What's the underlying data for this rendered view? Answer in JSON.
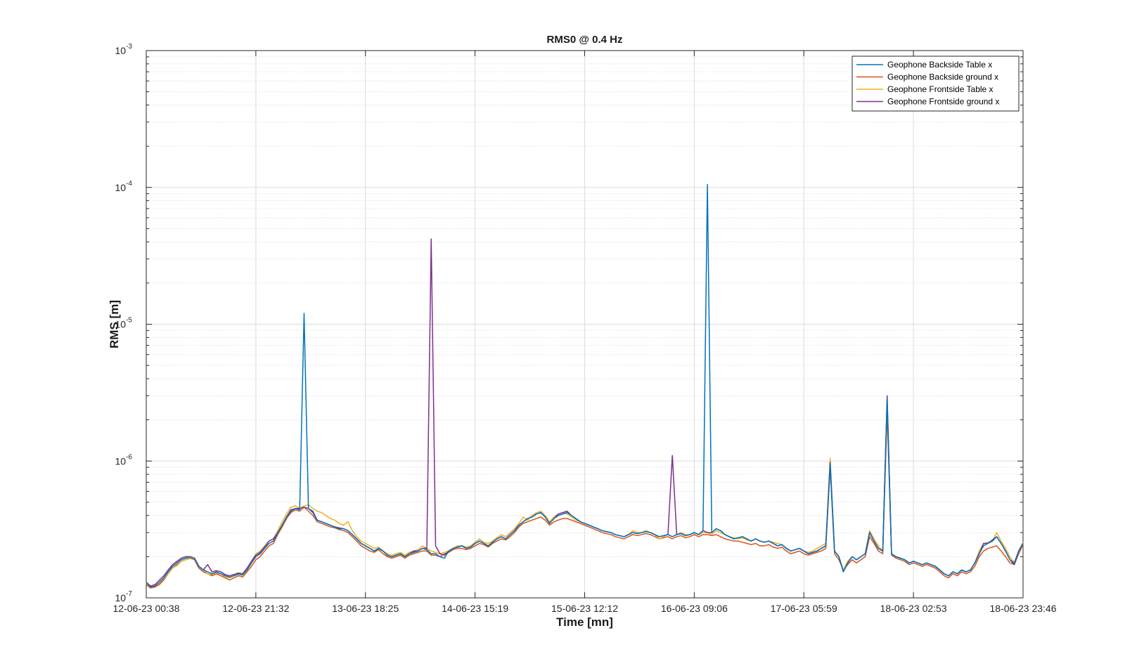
{
  "chart_data": {
    "type": "line",
    "title": "RMS0 @ 0.4 Hz",
    "xlabel": "Time [mn]",
    "ylabel": "RMS [m]",
    "yscale": "log",
    "ylim": [
      1e-07,
      0.001
    ],
    "yticks": [
      {
        "base": "10",
        "exp": "-7",
        "value": 1e-07
      },
      {
        "base": "10",
        "exp": "-6",
        "value": 1e-06
      },
      {
        "base": "10",
        "exp": "-5",
        "value": 1e-05
      },
      {
        "base": "10",
        "exp": "-4",
        "value": 0.0001
      },
      {
        "base": "10",
        "exp": "-3",
        "value": 0.001
      }
    ],
    "xticks": [
      "12-06-23 00:38",
      "12-06-23 21:32",
      "13-06-23 18:25",
      "14-06-23 15:19",
      "15-06-23 12:12",
      "16-06-23 09:06",
      "17-06-23 05:59",
      "18-06-23 02:53",
      "18-06-23 23:46"
    ],
    "xlim": [
      "12-06-23 00:38",
      "18-06-23 23:46"
    ],
    "grid": true,
    "legend_position": "top-right",
    "sample_interval_hours": 1,
    "series": [
      {
        "name": "Geophone Backside Table x",
        "color": "#0072BD",
        "values": [
          1.3e-07,
          1.2e-07,
          1.22e-07,
          1.3e-07,
          1.4e-07,
          1.55e-07,
          1.7e-07,
          1.8e-07,
          1.9e-07,
          1.95e-07,
          2e-07,
          1.95e-07,
          1.7e-07,
          1.6e-07,
          1.55e-07,
          1.5e-07,
          1.55e-07,
          1.5e-07,
          1.45e-07,
          1.42e-07,
          1.45e-07,
          1.5e-07,
          1.48e-07,
          1.6e-07,
          1.8e-07,
          2e-07,
          2.1e-07,
          2.3e-07,
          2.5e-07,
          2.6e-07,
          3e-07,
          3.4e-07,
          3.9e-07,
          4.3e-07,
          4.5e-07,
          4.4e-07,
          1.2e-05,
          4.5e-07,
          4.3e-07,
          3.7e-07,
          3.6e-07,
          3.5e-07,
          3.4e-07,
          3.3e-07,
          3.2e-07,
          3.2e-07,
          3.1e-07,
          2.9e-07,
          2.7e-07,
          2.5e-07,
          2.4e-07,
          2.3e-07,
          2.2e-07,
          2.3e-07,
          2.2e-07,
          2.05e-07,
          2e-07,
          2.05e-07,
          2.1e-07,
          2e-07,
          2.1e-07,
          2.15e-07,
          2.2e-07,
          2.3e-07,
          2.25e-07,
          2.1e-07,
          2.1e-07,
          2e-07,
          1.95e-07,
          2.2e-07,
          2.3e-07,
          2.35e-07,
          2.4e-07,
          2.3e-07,
          2.35e-07,
          2.5e-07,
          2.6e-07,
          2.5e-07,
          2.4e-07,
          2.55e-07,
          2.7e-07,
          2.8e-07,
          2.7e-07,
          2.9e-07,
          3.1e-07,
          3.4e-07,
          3.6e-07,
          3.8e-07,
          3.9e-07,
          4.1e-07,
          4.2e-07,
          3.9e-07,
          3.5e-07,
          3.8e-07,
          4e-07,
          4.1e-07,
          4.2e-07,
          4e-07,
          3.8e-07,
          3.6e-07,
          3.5e-07,
          3.4e-07,
          3.3e-07,
          3.2e-07,
          3.1e-07,
          3.05e-07,
          3e-07,
          2.9e-07,
          2.85e-07,
          2.8e-07,
          2.9e-07,
          3e-07,
          2.95e-07,
          3e-07,
          3.05e-07,
          3e-07,
          2.9e-07,
          2.8e-07,
          2.85e-07,
          2.9e-07,
          2.8e-07,
          2.9e-07,
          2.95e-07,
          2.85e-07,
          2.9e-07,
          3e-07,
          2.9e-07,
          3.1e-07,
          0.000105,
          3e-07,
          3.2e-07,
          3.1e-07,
          2.9e-07,
          2.8e-07,
          2.7e-07,
          2.75e-07,
          2.8e-07,
          2.7e-07,
          2.6e-07,
          2.7e-07,
          2.6e-07,
          2.55e-07,
          2.6e-07,
          2.5e-07,
          2.4e-07,
          2.45e-07,
          2.3e-07,
          2.2e-07,
          2.25e-07,
          2.3e-07,
          2.2e-07,
          2.1e-07,
          2.15e-07,
          2.2e-07,
          2.3e-07,
          2.4e-07,
          9.6e-07,
          2.2e-07,
          2e-07,
          1.55e-07,
          1.8e-07,
          2e-07,
          1.9e-07,
          2e-07,
          2.1e-07,
          3e-07,
          2.6e-07,
          2.3e-07,
          2.2e-07,
          2.8e-06,
          2.1e-07,
          2e-07,
          1.95e-07,
          1.9e-07,
          1.8e-07,
          1.85e-07,
          1.8e-07,
          1.75e-07,
          1.8e-07,
          1.75e-07,
          1.7e-07,
          1.6e-07,
          1.5e-07,
          1.45e-07,
          1.55e-07,
          1.5e-07,
          1.6e-07,
          1.55e-07,
          1.6e-07,
          1.8e-07,
          2.1e-07,
          2.4e-07,
          2.5e-07,
          2.6e-07,
          2.8e-07,
          2.5e-07,
          2.2e-07,
          1.9e-07,
          1.8e-07,
          2.2e-07,
          2.5e-07
        ]
      },
      {
        "name": "Geophone Backside ground x",
        "color": "#D95319",
        "values": [
          1.25e-07,
          1.18e-07,
          1.2e-07,
          1.25e-07,
          1.35e-07,
          1.5e-07,
          1.65e-07,
          1.75e-07,
          1.85e-07,
          1.9e-07,
          1.95e-07,
          1.9e-07,
          1.65e-07,
          1.55e-07,
          1.5e-07,
          1.45e-07,
          1.5e-07,
          1.45e-07,
          1.4e-07,
          1.35e-07,
          1.4e-07,
          1.45e-07,
          1.42e-07,
          1.55e-07,
          1.7e-07,
          1.9e-07,
          2e-07,
          2.2e-07,
          2.4e-07,
          2.5e-07,
          2.9e-07,
          3.3e-07,
          3.8e-07,
          4.2e-07,
          4.4e-07,
          4.3e-07,
          4.6e-07,
          4.3e-07,
          4e-07,
          3.6e-07,
          3.5e-07,
          3.4e-07,
          3.3e-07,
          3.25e-07,
          3.15e-07,
          3.1e-07,
          3e-07,
          2.8e-07,
          2.6e-07,
          2.4e-07,
          2.3e-07,
          2.2e-07,
          2.15e-07,
          2.25e-07,
          2.1e-07,
          2e-07,
          1.95e-07,
          2e-07,
          2.05e-07,
          1.95e-07,
          2.05e-07,
          2.1e-07,
          2.15e-07,
          2.2e-07,
          2.2e-07,
          2.05e-07,
          2.05e-07,
          2e-07,
          2.1e-07,
          2.15e-07,
          2.25e-07,
          2.3e-07,
          2.3e-07,
          2.25e-07,
          2.3e-07,
          2.4e-07,
          2.5e-07,
          2.45e-07,
          2.35e-07,
          2.5e-07,
          2.6e-07,
          2.7e-07,
          2.65e-07,
          2.8e-07,
          3e-07,
          3.3e-07,
          3.5e-07,
          3.6e-07,
          3.7e-07,
          3.8e-07,
          3.9e-07,
          3.7e-07,
          3.4e-07,
          3.6e-07,
          3.7e-07,
          3.8e-07,
          3.8e-07,
          3.7e-07,
          3.6e-07,
          3.5e-07,
          3.4e-07,
          3.3e-07,
          3.2e-07,
          3.1e-07,
          3e-07,
          2.95e-07,
          2.9e-07,
          2.8e-07,
          2.75e-07,
          2.7e-07,
          2.8e-07,
          2.9e-07,
          2.85e-07,
          2.9e-07,
          2.95e-07,
          2.9e-07,
          2.8e-07,
          2.7e-07,
          2.75e-07,
          2.8e-07,
          2.7e-07,
          2.8e-07,
          2.85e-07,
          2.75e-07,
          2.8e-07,
          2.9e-07,
          2.8e-07,
          2.9e-07,
          2.9e-07,
          2.85e-07,
          2.9e-07,
          2.8e-07,
          2.7e-07,
          2.65e-07,
          2.6e-07,
          2.6e-07,
          2.55e-07,
          2.5e-07,
          2.45e-07,
          2.5e-07,
          2.4e-07,
          2.4e-07,
          2.45e-07,
          2.35e-07,
          2.3e-07,
          2.35e-07,
          2.2e-07,
          2.1e-07,
          2.15e-07,
          2.2e-07,
          2.1e-07,
          2.05e-07,
          2.1e-07,
          2.15e-07,
          2.2e-07,
          2.3e-07,
          9e-07,
          2.1e-07,
          1.9e-07,
          1.6e-07,
          1.75e-07,
          1.9e-07,
          1.8e-07,
          1.9e-07,
          2e-07,
          2.8e-07,
          2.5e-07,
          2.2e-07,
          2.1e-07,
          2.3e-06,
          2.05e-07,
          1.95e-07,
          1.9e-07,
          1.85e-07,
          1.75e-07,
          1.8e-07,
          1.75e-07,
          1.7e-07,
          1.75e-07,
          1.7e-07,
          1.65e-07,
          1.55e-07,
          1.45e-07,
          1.4e-07,
          1.5e-07,
          1.45e-07,
          1.55e-07,
          1.5e-07,
          1.55e-07,
          1.7e-07,
          2e-07,
          2.2e-07,
          2.3e-07,
          2.35e-07,
          2.4e-07,
          2.2e-07,
          2e-07,
          1.8e-07,
          1.75e-07,
          2.1e-07,
          2.45e-07
        ]
      },
      {
        "name": "Geophone Frontside Table x",
        "color": "#EDB120",
        "values": [
          1.28e-07,
          1.2e-07,
          1.22e-07,
          1.28e-07,
          1.38e-07,
          1.5e-07,
          1.65e-07,
          1.72e-07,
          1.85e-07,
          1.9e-07,
          1.98e-07,
          1.95e-07,
          1.7e-07,
          1.6e-07,
          1.5e-07,
          1.48e-07,
          1.52e-07,
          1.5e-07,
          1.42e-07,
          1.4e-07,
          1.45e-07,
          1.48e-07,
          1.45e-07,
          1.6e-07,
          1.85e-07,
          2.1e-07,
          2.2e-07,
          2.4e-07,
          2.6e-07,
          2.7e-07,
          3.1e-07,
          3.6e-07,
          4.1e-07,
          4.6e-07,
          4.7e-07,
          4.5e-07,
          4.7e-07,
          4.8e-07,
          4.5e-07,
          4.3e-07,
          4.2e-07,
          4e-07,
          3.8e-07,
          3.7e-07,
          3.5e-07,
          3.4e-07,
          3.6e-07,
          3.1e-07,
          2.8e-07,
          2.6e-07,
          2.5e-07,
          2.4e-07,
          2.3e-07,
          2.35e-07,
          2.2e-07,
          2.1e-07,
          2.05e-07,
          2.1e-07,
          2.15e-07,
          2.05e-07,
          2.15e-07,
          2.2e-07,
          2.25e-07,
          2.4e-07,
          2.3e-07,
          2.2e-07,
          2.15e-07,
          2.1e-07,
          2.15e-07,
          2.2e-07,
          2.3e-07,
          2.4e-07,
          2.4e-07,
          2.35e-07,
          2.4e-07,
          2.55e-07,
          2.7e-07,
          2.55e-07,
          2.5e-07,
          2.6e-07,
          2.75e-07,
          2.9e-07,
          2.8e-07,
          3e-07,
          3.2e-07,
          3.5e-07,
          3.9e-07,
          3.7e-07,
          4e-07,
          4.2e-07,
          4.3e-07,
          4e-07,
          3.6e-07,
          3.9e-07,
          4.1e-07,
          4.2e-07,
          4.1e-07,
          3.9e-07,
          3.7e-07,
          3.6e-07,
          3.5e-07,
          3.4e-07,
          3.3e-07,
          3.2e-07,
          3.1e-07,
          3.05e-07,
          3e-07,
          2.9e-07,
          2.85e-07,
          2.8e-07,
          2.9e-07,
          3.1e-07,
          3e-07,
          3e-07,
          3.1e-07,
          3e-07,
          2.9e-07,
          2.7e-07,
          2.8e-07,
          2.9e-07,
          2.8e-07,
          2.9e-07,
          3e-07,
          2.9e-07,
          2.9e-07,
          3e-07,
          2.9e-07,
          3e-07,
          3e-07,
          2.9e-07,
          3.1e-07,
          3e-07,
          2.9e-07,
          2.8e-07,
          2.75e-07,
          2.7e-07,
          2.75e-07,
          2.65e-07,
          2.6e-07,
          2.7e-07,
          2.6e-07,
          2.55e-07,
          2.6e-07,
          2.55e-07,
          2.5e-07,
          2.45e-07,
          2.3e-07,
          2.2e-07,
          2.25e-07,
          2.3e-07,
          2.2e-07,
          2.15e-07,
          2.2e-07,
          2.3e-07,
          2.4e-07,
          2.5e-07,
          1.05e-06,
          2.2e-07,
          2e-07,
          1.6e-07,
          1.85e-07,
          2e-07,
          1.9e-07,
          2e-07,
          2.1e-07,
          3.1e-07,
          2.7e-07,
          2.4e-07,
          2.2e-07,
          2.9e-06,
          2.1e-07,
          2e-07,
          1.95e-07,
          1.9e-07,
          1.8e-07,
          1.85e-07,
          1.8e-07,
          1.75e-07,
          1.8e-07,
          1.75e-07,
          1.7e-07,
          1.6e-07,
          1.5e-07,
          1.45e-07,
          1.55e-07,
          1.5e-07,
          1.6e-07,
          1.55e-07,
          1.6e-07,
          1.8e-07,
          2.2e-07,
          2.5e-07,
          2.55e-07,
          2.6e-07,
          3e-07,
          2.6e-07,
          2.3e-07,
          2e-07,
          1.8e-07,
          2.2e-07,
          2.55e-07
        ]
      },
      {
        "name": "Geophone Frontside ground x",
        "color": "#7E2F8E",
        "values": [
          1.3e-07,
          1.22e-07,
          1.25e-07,
          1.35e-07,
          1.45e-07,
          1.6e-07,
          1.75e-07,
          1.85e-07,
          1.95e-07,
          2e-07,
          2e-07,
          1.95e-07,
          1.7e-07,
          1.6e-07,
          1.75e-07,
          1.55e-07,
          1.58e-07,
          1.55e-07,
          1.48e-07,
          1.45e-07,
          1.48e-07,
          1.52e-07,
          1.5e-07,
          1.65e-07,
          1.85e-07,
          2.05e-07,
          2.15e-07,
          2.35e-07,
          2.6e-07,
          2.7e-07,
          3e-07,
          3.4e-07,
          3.9e-07,
          4.4e-07,
          4.5e-07,
          4.5e-07,
          4.6e-07,
          4.5e-07,
          4.2e-07,
          3.7e-07,
          3.6e-07,
          3.5e-07,
          3.4e-07,
          3.3e-07,
          3.25e-07,
          3.2e-07,
          3.1e-07,
          2.9e-07,
          2.7e-07,
          2.5e-07,
          2.4e-07,
          2.3e-07,
          2.2e-07,
          2.3e-07,
          2.2e-07,
          2.05e-07,
          2e-07,
          2.05e-07,
          2.1e-07,
          2e-07,
          2.1e-07,
          2.2e-07,
          2.2e-07,
          2.3e-07,
          2.3e-07,
          4.2e-05,
          2.4e-07,
          2.1e-07,
          2.05e-07,
          2.2e-07,
          2.3e-07,
          2.35e-07,
          2.4e-07,
          2.3e-07,
          2.35e-07,
          2.5e-07,
          2.6e-07,
          2.5e-07,
          2.4e-07,
          2.55e-07,
          2.7e-07,
          2.8e-07,
          2.7e-07,
          2.9e-07,
          3.1e-07,
          3.4e-07,
          3.6e-07,
          3.8e-07,
          3.9e-07,
          4.1e-07,
          4.2e-07,
          3.9e-07,
          3.5e-07,
          3.8e-07,
          4.1e-07,
          4.2e-07,
          4.3e-07,
          4e-07,
          3.8e-07,
          3.6e-07,
          3.5e-07,
          3.4e-07,
          3.3e-07,
          3.2e-07,
          3.1e-07,
          3.05e-07,
          3e-07,
          2.9e-07,
          2.85e-07,
          2.8e-07,
          2.9e-07,
          3e-07,
          2.95e-07,
          3e-07,
          3.05e-07,
          3e-07,
          2.9e-07,
          2.8e-07,
          2.85e-07,
          2.9e-07,
          1.1e-06,
          2.9e-07,
          2.95e-07,
          2.85e-07,
          2.9e-07,
          3e-07,
          2.9e-07,
          3.1e-07,
          3e-07,
          3e-07,
          3.2e-07,
          3.1e-07,
          2.9e-07,
          2.8e-07,
          2.7e-07,
          2.75e-07,
          2.8e-07,
          2.7e-07,
          2.6e-07,
          2.7e-07,
          2.6e-07,
          2.55e-07,
          2.6e-07,
          2.5e-07,
          2.4e-07,
          2.45e-07,
          2.3e-07,
          2.2e-07,
          2.25e-07,
          2.3e-07,
          2.2e-07,
          2.1e-07,
          2.15e-07,
          2.2e-07,
          2.3e-07,
          2.4e-07,
          9.8e-07,
          2.2e-07,
          2e-07,
          1.55e-07,
          1.8e-07,
          2e-07,
          1.9e-07,
          2e-07,
          2.1e-07,
          3e-07,
          2.6e-07,
          2.3e-07,
          2.2e-07,
          3e-06,
          2.1e-07,
          2e-07,
          1.95e-07,
          1.9e-07,
          1.8e-07,
          1.85e-07,
          1.8e-07,
          1.75e-07,
          1.8e-07,
          1.75e-07,
          1.7e-07,
          1.6e-07,
          1.5e-07,
          1.45e-07,
          1.55e-07,
          1.5e-07,
          1.6e-07,
          1.55e-07,
          1.6e-07,
          1.8e-07,
          2.1e-07,
          2.5e-07,
          2.5e-07,
          2.65e-07,
          2.8e-07,
          2.5e-07,
          2.2e-07,
          1.9e-07,
          1.75e-07,
          2.2e-07,
          2.5e-07
        ]
      }
    ]
  }
}
